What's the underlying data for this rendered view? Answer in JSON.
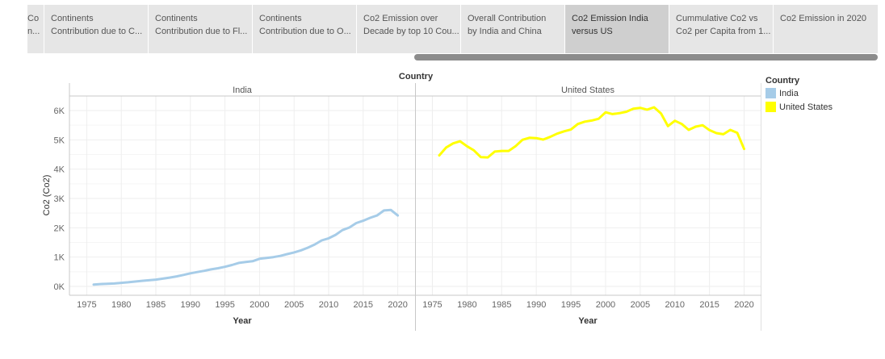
{
  "tabs": [
    {
      "line1": "Co",
      "line2": "n..."
    },
    {
      "line1": "Continents",
      "line2": "Contribution due to C..."
    },
    {
      "line1": "Continents",
      "line2": "Contribution due to Fl..."
    },
    {
      "line1": "Continents",
      "line2": "Contribution due to O..."
    },
    {
      "line1": "Co2 Emission over",
      "line2": "Decade by top 10 Cou..."
    },
    {
      "line1": "Overall Contribution",
      "line2": "by India and China"
    },
    {
      "line1": "Co2 Emission India",
      "line2": "versus US"
    },
    {
      "line1": "Cummulative Co2 vs",
      "line2": "Co2 per Capita from 1..."
    },
    {
      "line1": "Co2 Emission in 2020",
      "line2": ""
    }
  ],
  "active_tab": 6,
  "legend": {
    "title": "Country",
    "items": [
      {
        "label": "India",
        "color": "#a6cce8"
      },
      {
        "label": "United States",
        "color": "#ffff00"
      }
    ]
  },
  "chart_data": {
    "type": "line",
    "title": "Country",
    "xlabel": "Year",
    "ylabel": "Co2 (Co2)",
    "y_ticks": [
      "0K",
      "1K",
      "2K",
      "3K",
      "4K",
      "5K",
      "6K"
    ],
    "x_ticks": [
      "1975",
      "1980",
      "1985",
      "1990",
      "1995",
      "2000",
      "2005",
      "2010",
      "2015",
      "2020"
    ],
    "ylim": [
      0,
      6500
    ],
    "xlim": [
      1972.5,
      2022.5
    ],
    "grid": true,
    "legend_position": "right",
    "panels": [
      {
        "name": "India",
        "color": "#a6cce8",
        "x": [
          1976,
          1977,
          1978,
          1979,
          1980,
          1981,
          1982,
          1983,
          1984,
          1985,
          1986,
          1987,
          1988,
          1989,
          1990,
          1991,
          1992,
          1993,
          1994,
          1995,
          1996,
          1997,
          1998,
          1999,
          2000,
          2001,
          2002,
          2003,
          2004,
          2005,
          2006,
          2007,
          2008,
          2009,
          2010,
          2011,
          2012,
          2013,
          2014,
          2015,
          2016,
          2017,
          2018,
          2019,
          2020
        ],
        "values": [
          60,
          80,
          90,
          100,
          120,
          140,
          165,
          190,
          210,
          230,
          265,
          300,
          340,
          390,
          445,
          490,
          530,
          580,
          620,
          670,
          730,
          800,
          830,
          860,
          940,
          970,
          1000,
          1040,
          1100,
          1160,
          1230,
          1320,
          1430,
          1570,
          1640,
          1760,
          1920,
          2010,
          2160,
          2240,
          2340,
          2420,
          2590,
          2610,
          2420
        ]
      },
      {
        "name": "United States",
        "color": "#ffff00",
        "x": [
          1976,
          1977,
          1978,
          1979,
          1980,
          1981,
          1982,
          1983,
          1984,
          1985,
          1986,
          1987,
          1988,
          1989,
          1990,
          1991,
          1992,
          1993,
          1994,
          1995,
          1996,
          1997,
          1998,
          1999,
          2000,
          2001,
          2002,
          2003,
          2004,
          2005,
          2006,
          2007,
          2008,
          2009,
          2010,
          2011,
          2012,
          2013,
          2014,
          2015,
          2016,
          2017,
          2018,
          2019,
          2020
        ],
        "values": [
          4470,
          4740,
          4880,
          4950,
          4780,
          4640,
          4410,
          4400,
          4600,
          4620,
          4620,
          4780,
          5000,
          5070,
          5060,
          5010,
          5100,
          5210,
          5290,
          5350,
          5540,
          5620,
          5660,
          5720,
          5940,
          5880,
          5910,
          5960,
          6060,
          6090,
          6030,
          6110,
          5900,
          5470,
          5650,
          5540,
          5340,
          5450,
          5500,
          5330,
          5230,
          5190,
          5340,
          5240,
          4690
        ]
      }
    ]
  }
}
